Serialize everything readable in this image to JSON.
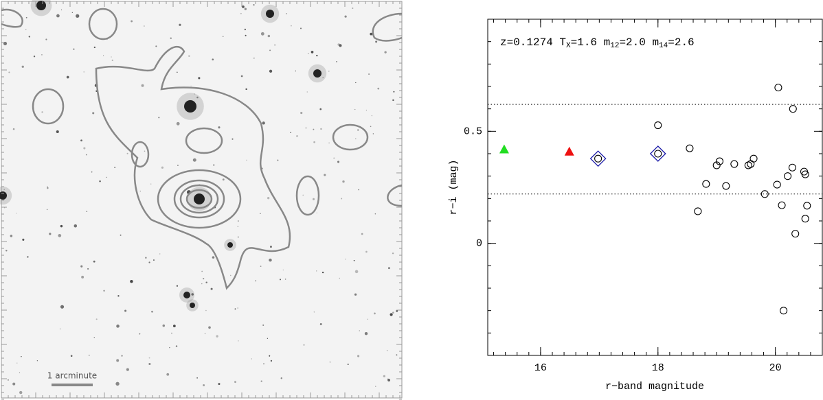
{
  "image_panel": {
    "scale_label": "1 arcminute"
  },
  "chart_data": {
    "type": "scatter",
    "annotation": [
      [
        "z=0.1274  T",
        "X"
      ],
      [
        "=1.6  m",
        "12"
      ],
      [
        "=2.0  m",
        "14"
      ],
      [
        "=2.6",
        null
      ]
    ],
    "xlabel": "r−band magnitude",
    "ylabel": "r−i (mag)",
    "xlim": [
      15.1,
      20.8
    ],
    "ylim": [
      -0.5,
      1.0
    ],
    "xticks": [
      16,
      18,
      20
    ],
    "yticks": [
      0,
      0.5
    ],
    "xminorstep": 0.2,
    "yminorstep": 0.1,
    "hlines": [
      0.62,
      0.22
    ],
    "series": [
      {
        "marker": "triangle",
        "color": "#22dd22",
        "x": [
          15.38
        ],
        "values": [
          0.42
        ]
      },
      {
        "marker": "triangle",
        "color": "#ee1111",
        "x": [
          16.49
        ],
        "values": [
          0.41
        ]
      },
      {
        "marker": "diamond",
        "color": "#1a1aa8",
        "x": [
          16.98,
          18.0
        ],
        "values": [
          0.378,
          0.4
        ]
      },
      {
        "marker": "circle",
        "color": "#000000",
        "x": [
          16.98,
          18.0,
          18.0,
          20.05,
          20.3,
          18.54,
          19.05,
          19.0,
          19.3,
          19.54,
          19.58,
          19.63,
          18.82,
          19.16,
          18.68,
          19.82,
          20.03,
          20.21,
          20.29,
          20.49,
          20.51,
          20.11,
          20.54,
          20.51,
          20.34,
          20.14
        ],
        "values": [
          0.378,
          0.4,
          0.527,
          0.695,
          0.6,
          0.424,
          0.366,
          0.348,
          0.354,
          0.348,
          0.354,
          0.378,
          0.265,
          0.256,
          0.143,
          0.22,
          0.262,
          0.3,
          0.338,
          0.32,
          0.308,
          0.17,
          0.168,
          0.11,
          0.043,
          -0.3
        ]
      }
    ]
  }
}
